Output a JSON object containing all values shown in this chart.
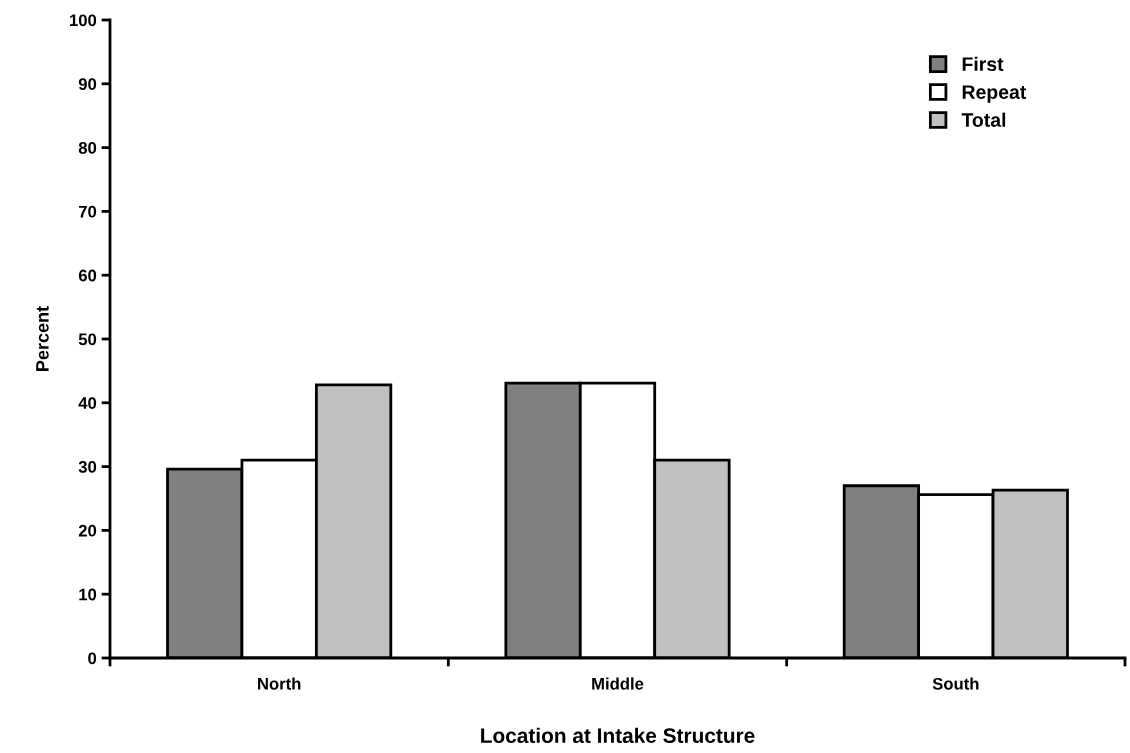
{
  "chart_data": {
    "type": "bar",
    "xlabel": "Location at Intake Structure",
    "ylabel": "Percent",
    "categories": [
      "North",
      "Middle",
      "South"
    ],
    "series": [
      {
        "name": "First",
        "color": "#808080",
        "values": [
          29.6,
          43.1,
          27.0
        ]
      },
      {
        "name": "Repeat",
        "color": "#ffffff",
        "values": [
          31.0,
          43.1,
          25.6
        ]
      },
      {
        "name": "Total",
        "color": "#c0c0c0",
        "values": [
          42.8,
          31.0,
          26.3
        ]
      }
    ],
    "ylim": [
      0,
      100
    ],
    "yticks": [
      0,
      10,
      20,
      30,
      40,
      50,
      60,
      70,
      80,
      90,
      100
    ],
    "grid": false,
    "legend": "top right"
  }
}
